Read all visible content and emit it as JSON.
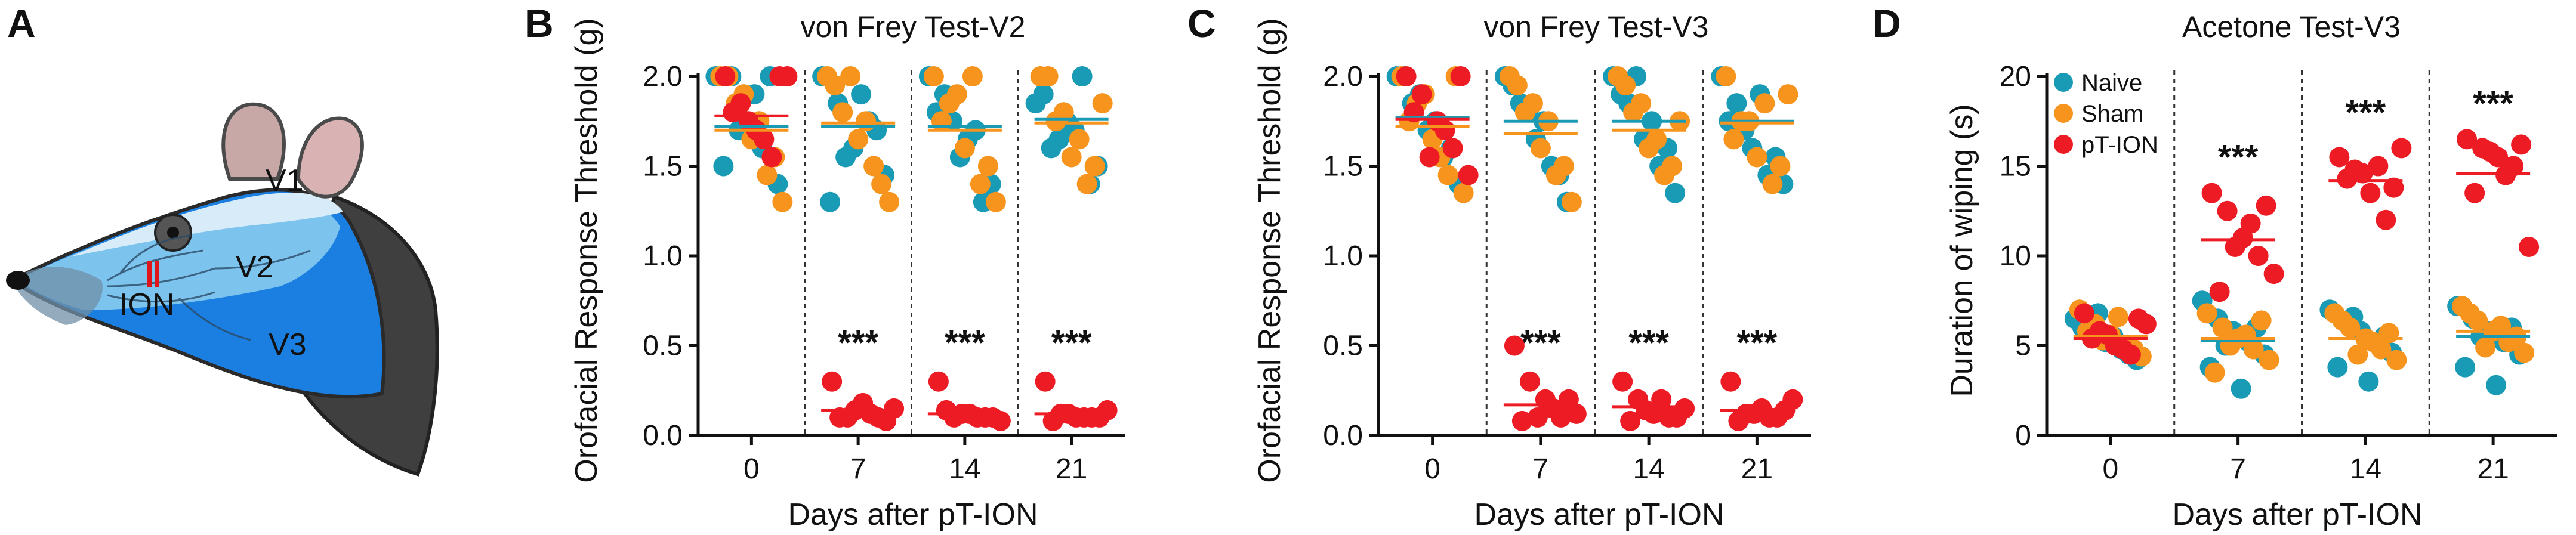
{
  "figure": {
    "colors": {
      "naive": "#1a9bb5",
      "sham": "#f7941d",
      "ption": "#ed1c24",
      "mouse_v1": "#d7ecf8",
      "mouse_v2": "#7cc3ee",
      "mouse_v3": "#1a7fe0",
      "mouse_fur": "#3f3f3f"
    },
    "panel_a": {
      "letter": "A",
      "labels": {
        "v1": "V1",
        "v2": "V2",
        "v3": "V3",
        "ion": "ION"
      }
    }
  },
  "chart_data": [
    {
      "panel": "B",
      "type": "scatter",
      "title": "von Frey Test-V2",
      "xlabel": "Days after pT-ION",
      "ylabel": "Orofacial Response Threshold (g)",
      "categories": [
        "0",
        "7",
        "14",
        "21"
      ],
      "ylim": [
        0,
        2.0
      ],
      "yticks": [
        "0.0",
        "0.5",
        "1.0",
        "1.5",
        "2.0"
      ],
      "significance": [
        "",
        "***",
        "***",
        "***"
      ],
      "series": [
        {
          "name": "Naive",
          "color": "#1a9bb5",
          "values": [
            [
              2.0,
              2.0,
              1.75,
              1.6,
              1.4,
              1.5,
              1.9,
              2.0,
              1.7
            ],
            [
              2.0,
              1.85,
              1.6,
              1.75,
              1.45,
              1.3,
              1.9,
              1.7,
              1.55
            ],
            [
              2.0,
              1.9,
              1.55,
              1.7,
              1.4,
              1.8,
              1.65,
              1.3,
              1.75
            ],
            [
              1.85,
              1.6,
              1.75,
              2.0,
              1.5,
              1.9,
              1.7,
              1.4,
              1.65
            ]
          ],
          "mean": [
            1.72,
            1.72,
            1.72,
            1.76
          ]
        },
        {
          "name": "Sham",
          "color": "#f7941d",
          "values": [
            [
              2.0,
              1.85,
              1.65,
              1.45,
              1.3,
              2.0,
              1.75,
              1.55,
              1.9
            ],
            [
              2.0,
              1.8,
              1.65,
              1.5,
              1.3,
              1.95,
              1.75,
              1.4,
              2.0
            ],
            [
              2.0,
              1.85,
              1.6,
              1.4,
              1.3,
              1.75,
              2.0,
              1.5,
              1.9
            ],
            [
              2.0,
              1.75,
              1.55,
              1.4,
              1.85,
              2.0,
              1.65,
              1.5,
              1.8
            ]
          ],
          "mean": [
            1.7,
            1.74,
            1.7,
            1.74
          ]
        },
        {
          "name": "pT-ION",
          "color": "#ed1c24",
          "values": [
            [
              2.0,
              1.85,
              1.7,
              1.55,
              2.0,
              1.8,
              1.65,
              2.0,
              1.75
            ],
            [
              0.3,
              0.1,
              0.18,
              0.1,
              0.15,
              0.1,
              0.12,
              0.08,
              0.14
            ],
            [
              0.3,
              0.1,
              0.12,
              0.1,
              0.08,
              0.14,
              0.1,
              0.1,
              0.12
            ],
            [
              0.3,
              0.12,
              0.1,
              0.1,
              0.14,
              0.08,
              0.1,
              0.1,
              0.12
            ]
          ],
          "mean": [
            1.78,
            0.14,
            0.12,
            0.12
          ]
        }
      ]
    },
    {
      "panel": "C",
      "type": "scatter",
      "title": "von Frey Test-V3",
      "xlabel": "Days after pT-ION",
      "ylabel": "Orofacial Response Threshold (g)",
      "categories": [
        "0",
        "7",
        "14",
        "21"
      ],
      "ylim": [
        0,
        2.0
      ],
      "yticks": [
        "0.0",
        "0.5",
        "1.0",
        "1.5",
        "2.0"
      ],
      "significance": [
        "",
        "***",
        "***",
        "***"
      ],
      "series": [
        {
          "name": "Naive",
          "color": "#1a9bb5",
          "values": [
            [
              2.0,
              1.85,
              1.7,
              1.55,
              1.4,
              2.0,
              1.75,
              1.6,
              1.9
            ],
            [
              2.0,
              1.85,
              1.65,
              1.5,
              1.3,
              1.95,
              1.75,
              1.45,
              1.8
            ],
            [
              2.0,
              1.85,
              1.65,
              1.5,
              1.35,
              1.9,
              1.75,
              1.6,
              2.0
            ],
            [
              2.0,
              1.85,
              1.6,
              1.45,
              1.4,
              1.75,
              1.9,
              1.55,
              1.7
            ]
          ],
          "mean": [
            1.77,
            1.75,
            1.75,
            1.75
          ]
        },
        {
          "name": "Sham",
          "color": "#f7941d",
          "values": [
            [
              2.0,
              1.85,
              1.65,
              1.45,
              1.35,
              1.75,
              1.55,
              2.0,
              1.9
            ],
            [
              2.0,
              1.8,
              1.6,
              1.45,
              1.3,
              1.95,
              1.75,
              1.5,
              1.85
            ],
            [
              2.0,
              1.8,
              1.6,
              1.45,
              1.75,
              1.95,
              1.65,
              1.5,
              1.85
            ],
            [
              2.0,
              1.75,
              1.55,
              1.4,
              1.9,
              1.65,
              1.85,
              1.5,
              1.75
            ]
          ],
          "mean": [
            1.72,
            1.68,
            1.7,
            1.74
          ]
        },
        {
          "name": "pT-ION",
          "color": "#ed1c24",
          "values": [
            [
              2.0,
              1.9,
              1.75,
              1.6,
              1.45,
              1.8,
              1.7,
              2.0,
              1.55
            ],
            [
              0.5,
              0.3,
              0.2,
              0.1,
              0.12,
              0.08,
              0.15,
              0.2,
              0.1
            ],
            [
              0.3,
              0.2,
              0.12,
              0.1,
              0.15,
              0.08,
              0.2,
              0.1,
              0.14
            ],
            [
              0.3,
              0.12,
              0.15,
              0.1,
              0.2,
              0.08,
              0.1,
              0.14,
              0.12
            ]
          ],
          "mean": [
            1.76,
            0.17,
            0.16,
            0.14
          ]
        }
      ]
    },
    {
      "panel": "D",
      "type": "scatter",
      "title": "Acetone Test-V3",
      "xlabel": "Days after pT-ION",
      "ylabel": "Duration of wiping (s)",
      "categories": [
        "0",
        "7",
        "14",
        "21"
      ],
      "ylim": [
        0,
        20
      ],
      "yticks": [
        "0",
        "5",
        "10",
        "15",
        "20"
      ],
      "significance": [
        "",
        "***",
        "***",
        "***"
      ],
      "legend": {
        "position": "top-left",
        "entries": [
          "Naive",
          "Sham",
          "pT-ION"
        ]
      },
      "series": [
        {
          "name": "Naive",
          "color": "#1a9bb5",
          "values": [
            [
              6.5,
              5.8,
              5.2,
              4.8,
              4.2,
              6.0,
              5.5,
              4.5,
              6.8
            ],
            [
              7.5,
              6.5,
              5.8,
              5.2,
              4.5,
              3.8,
              2.6,
              6.0,
              5.0
            ],
            [
              7.0,
              6.3,
              5.8,
              5.2,
              4.6,
              3.8,
              3.0,
              5.5,
              6.6
            ],
            [
              7.2,
              6.5,
              5.8,
              5.2,
              4.5,
              3.8,
              2.8,
              6.0,
              5.5
            ]
          ],
          "mean": [
            5.4,
            5.3,
            5.4,
            5.5
          ]
        },
        {
          "name": "Sham",
          "color": "#f7941d",
          "values": [
            [
              7.0,
              6.2,
              5.6,
              5.0,
              4.4,
              5.8,
              6.6,
              4.8,
              5.3
            ],
            [
              6.8,
              6.0,
              5.4,
              4.8,
              4.2,
              3.5,
              5.6,
              6.4,
              5.0
            ],
            [
              6.8,
              6.0,
              5.4,
              4.8,
              4.2,
              6.4,
              5.2,
              5.7,
              4.5
            ],
            [
              7.2,
              6.4,
              5.8,
              5.2,
              4.6,
              6.8,
              6.1,
              5.5,
              4.9
            ]
          ],
          "mean": [
            5.5,
            5.4,
            5.4,
            5.8
          ]
        },
        {
          "name": "pT-ION",
          "color": "#ed1c24",
          "values": [
            [
              6.8,
              5.8,
              5.0,
              4.5,
              6.2,
              5.4,
              4.8,
              6.5,
              5.6
            ],
            [
              13.5,
              12.5,
              11.0,
              10.0,
              9.0,
              8.0,
              11.8,
              12.8,
              10.5
            ],
            [
              15.5,
              14.8,
              13.5,
              12.0,
              16.0,
              14.3,
              15.0,
              13.8,
              14.6
            ],
            [
              16.5,
              16.0,
              15.5,
              15.0,
              10.5,
              13.5,
              14.5,
              16.2,
              15.8
            ]
          ],
          "mean": [
            5.4,
            10.9,
            14.2,
            14.6
          ]
        }
      ]
    }
  ]
}
